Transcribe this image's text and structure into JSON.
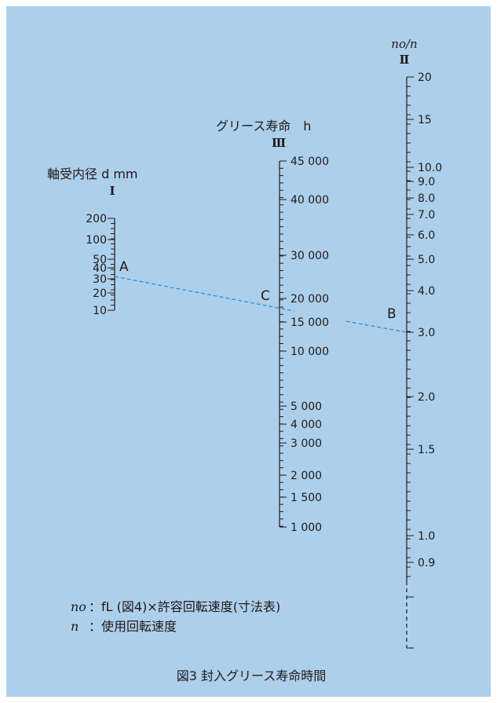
{
  "figure": {
    "caption": "図3 封入グリース寿命時間",
    "accent_line_color": "#2f8fd6",
    "background_color": "#acd0ec"
  },
  "scales": {
    "bore": {
      "title": "軸受内径 d mm",
      "roman": "Ⅰ",
      "ticks": [
        "200",
        "100",
        "50",
        "40",
        "30",
        "20",
        "10"
      ]
    },
    "grease": {
      "title": "グリース寿命　h",
      "roman": "Ⅲ",
      "ticks": [
        "45 000",
        "40 000",
        "30 000",
        "20 000",
        "15 000",
        "10 000",
        "5 000",
        "4 000",
        "3 000",
        "2 000",
        "1 500",
        "1 000"
      ]
    },
    "speed": {
      "title": "no/n",
      "roman": "Ⅱ",
      "ticks": [
        "20",
        "15",
        "10.0",
        "9.0",
        "8.0",
        "7.0",
        "6.0",
        "5.0",
        "4.0",
        "3.0",
        "2.0",
        "1.5",
        "1.0",
        "0.9"
      ]
    }
  },
  "points": {
    "a": "A",
    "b": "B",
    "c": "C"
  },
  "legend": {
    "line1_symbol": "no",
    "line1_text": "：fL (図4)×許容回転速度(寸法表)",
    "line2_symbol": "n",
    "line2_text": "：使用回転速度"
  }
}
